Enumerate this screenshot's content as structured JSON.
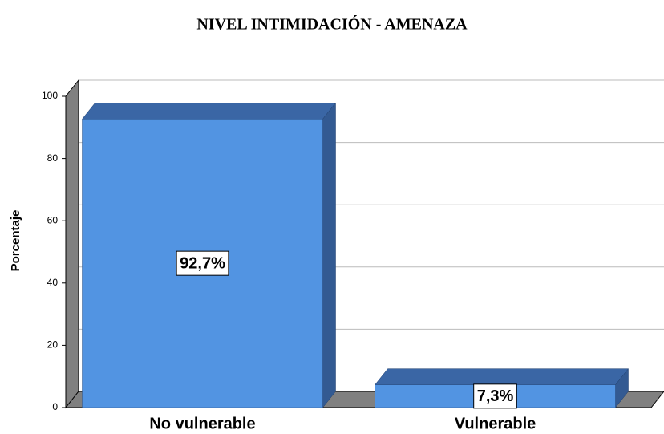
{
  "chart_data": {
    "type": "bar3d",
    "title": "NIVEL INTIMIDACIÓN - AMENAZA",
    "ylabel": "Porcentaje",
    "categories": [
      "No vulnerable",
      "Vulnerable"
    ],
    "values": [
      92.7,
      7.3
    ],
    "value_labels": [
      "92,7%",
      "7,3%"
    ],
    "color": "#5294e2",
    "ylim": [
      0,
      100
    ],
    "yticks": [
      0,
      20,
      40,
      60,
      80,
      100
    ],
    "grid": true
  }
}
